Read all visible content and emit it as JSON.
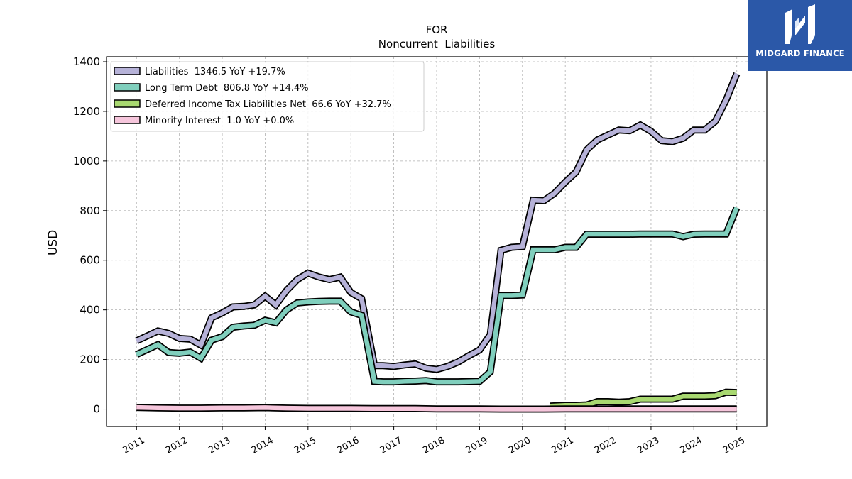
{
  "brand": {
    "name": "MIDGARD FINANCE",
    "bg": "#2b58a8"
  },
  "chart_data": {
    "type": "line",
    "title": "FOR",
    "subtitle": "Noncurrent  Liabilities",
    "ylabel": "USD",
    "ylim": [
      -70,
      1420
    ],
    "xlim": [
      2010.3,
      2025.7
    ],
    "yticks": [
      0,
      200,
      400,
      600,
      800,
      1000,
      1200,
      1400
    ],
    "xticks": [
      2011,
      2012,
      2013,
      2014,
      2015,
      2016,
      2017,
      2018,
      2019,
      2020,
      2021,
      2022,
      2023,
      2024,
      2025
    ],
    "grid": true,
    "legend_position": "top-left",
    "series": [
      {
        "name": "Liabilities",
        "legend": "Liabilities  1346.5 YoY +19.7%",
        "color": "#b6b2d8",
        "x": [
          2011.0,
          2011.5,
          2011.75,
          2012.0,
          2012.25,
          2012.5,
          2012.75,
          2013.0,
          2013.25,
          2013.5,
          2013.75,
          2014.0,
          2014.25,
          2014.5,
          2014.75,
          2015.0,
          2015.25,
          2015.5,
          2015.75,
          2016.0,
          2016.25,
          2016.55,
          2016.75,
          2017.0,
          2017.25,
          2017.5,
          2017.75,
          2018.0,
          2018.25,
          2018.5,
          2018.75,
          2019.0,
          2019.25,
          2019.5,
          2019.75,
          2020.0,
          2020.25,
          2020.5,
          2020.75,
          2021.0,
          2021.25,
          2021.5,
          2021.75,
          2022.0,
          2022.25,
          2022.5,
          2022.75,
          2023.0,
          2023.25,
          2023.5,
          2023.75,
          2024.0,
          2024.25,
          2024.5,
          2024.75,
          2025.0
        ],
        "values": [
          275,
          315,
          305,
          285,
          282,
          258,
          368,
          388,
          412,
          414,
          420,
          455,
          420,
          478,
          522,
          548,
          533,
          522,
          532,
          470,
          445,
          175,
          175,
          172,
          178,
          182,
          165,
          160,
          172,
          190,
          215,
          238,
          300,
          640,
          652,
          655,
          842,
          840,
          870,
          915,
          955,
          1045,
          1085,
          1105,
          1125,
          1122,
          1145,
          1120,
          1082,
          1078,
          1092,
          1125,
          1125,
          1160,
          1245,
          1352
        ]
      },
      {
        "name": "Long Term Debt",
        "legend": "Long Term Debt  806.8 YoY +14.4%",
        "color": "#80cfbd",
        "x": [
          2011.0,
          2011.5,
          2011.75,
          2012.0,
          2012.25,
          2012.5,
          2012.75,
          2013.0,
          2013.25,
          2013.5,
          2013.75,
          2014.0,
          2014.25,
          2014.5,
          2014.75,
          2015.0,
          2015.25,
          2015.5,
          2015.75,
          2016.0,
          2016.25,
          2016.55,
          2016.75,
          2017.0,
          2017.25,
          2017.5,
          2017.75,
          2018.0,
          2018.25,
          2018.5,
          2018.75,
          2019.0,
          2019.25,
          2019.5,
          2019.75,
          2020.0,
          2020.25,
          2020.5,
          2020.75,
          2021.0,
          2021.25,
          2021.5,
          2021.75,
          2022.0,
          2022.25,
          2022.5,
          2022.75,
          2023.0,
          2023.25,
          2023.5,
          2023.75,
          2024.0,
          2024.25,
          2024.5,
          2024.75,
          2025.0
        ],
        "values": [
          220,
          260,
          228,
          225,
          230,
          205,
          278,
          292,
          330,
          335,
          338,
          358,
          348,
          400,
          428,
          432,
          434,
          435,
          435,
          392,
          378,
          112,
          110,
          110,
          112,
          113,
          115,
          110,
          110,
          110,
          111,
          112,
          150,
          458,
          458,
          460,
          642,
          642,
          642,
          652,
          652,
          705,
          705,
          705,
          705,
          705,
          706,
          706,
          706,
          706,
          695,
          705,
          706,
          706,
          706,
          812
        ]
      },
      {
        "name": "Deferred Income Tax Liabilities Net",
        "legend": "Deferred Income Tax Liabilities Net  66.6 YoY +32.7%",
        "color": "#a8d870",
        "x": [
          2020.65,
          2021.0,
          2021.25,
          2021.5,
          2021.75,
          2022.0,
          2022.25,
          2022.5,
          2022.75,
          2023.0,
          2023.25,
          2023.5,
          2023.75,
          2024.0,
          2024.25,
          2024.5,
          2024.75,
          2025.0
        ],
        "values": [
          12,
          15,
          15,
          17,
          30,
          30,
          28,
          30,
          40,
          40,
          40,
          40,
          52,
          52,
          52,
          54,
          68,
          67
        ]
      },
      {
        "name": "Minority Interest",
        "legend": "Minority Interest  1.0 YoY +0.0%",
        "color": "#f6c6dc",
        "x": [
          2011.0,
          2011.5,
          2012.0,
          2012.5,
          2013.0,
          2013.5,
          2014.0,
          2014.5,
          2015.0,
          2015.5,
          2016.0,
          2016.5,
          2017.0,
          2017.5,
          2018.0,
          2018.5,
          2019.0,
          2019.5,
          2020.0,
          2020.5,
          2021.0,
          2021.5,
          2022.0,
          2022.5,
          2023.0,
          2023.5,
          2024.0,
          2024.5,
          2025.0
        ],
        "values": [
          7,
          5,
          4,
          4,
          5,
          5,
          6,
          4,
          3,
          3,
          3,
          2,
          2,
          2,
          1,
          1,
          1,
          0,
          0,
          0,
          1,
          1,
          1,
          1,
          1,
          1,
          1,
          1,
          1
        ]
      }
    ]
  }
}
